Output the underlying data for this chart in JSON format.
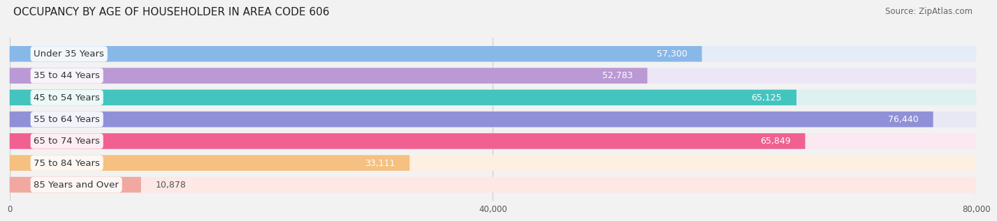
{
  "title": "OCCUPANCY BY AGE OF HOUSEHOLDER IN AREA CODE 606",
  "source": "Source: ZipAtlas.com",
  "categories": [
    "Under 35 Years",
    "35 to 44 Years",
    "45 to 54 Years",
    "55 to 64 Years",
    "65 to 74 Years",
    "75 to 84 Years",
    "85 Years and Over"
  ],
  "values": [
    57300,
    52783,
    65125,
    76440,
    65849,
    33111,
    10878
  ],
  "bar_colors": [
    "#88b8e8",
    "#bb99d4",
    "#44c4be",
    "#9090d8",
    "#f06090",
    "#f5c080",
    "#f0a8a0"
  ],
  "bar_bg_colors": [
    "#e4ecf7",
    "#ece6f5",
    "#ddf2f0",
    "#e8e8f5",
    "#fce8f0",
    "#fdf0e0",
    "#fde8e6"
  ],
  "xlim": [
    0,
    80000
  ],
  "xticks": [
    0,
    40000,
    80000
  ],
  "xtick_labels": [
    "0",
    "40,000",
    "80,000"
  ],
  "label_fontsize": 9.5,
  "value_fontsize": 9,
  "title_fontsize": 11,
  "background_color": "#f2f2f2"
}
